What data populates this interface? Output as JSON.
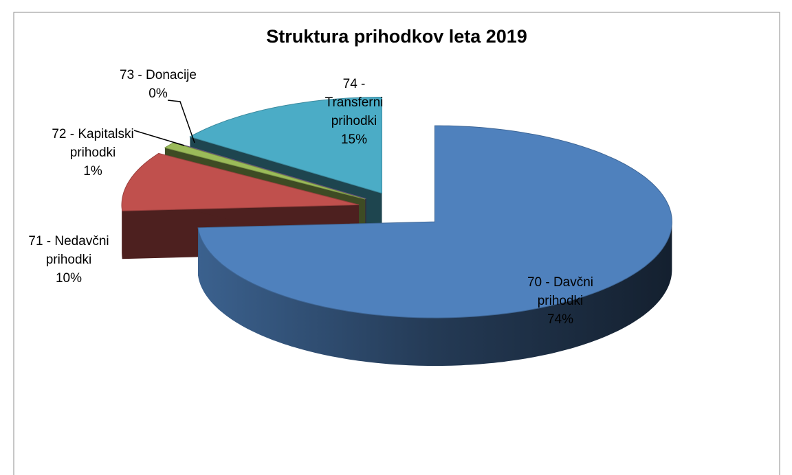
{
  "chart_data": {
    "type": "pie",
    "title": "Struktura prihodkov leta 2019",
    "categories": [
      "70 - Davčni prihodki",
      "71 - Nedavčni prihodki",
      "72 - Kapitalski prihodki",
      "73 - Donacije",
      "74 - Transferni prihodki"
    ],
    "values": [
      74,
      10,
      1,
      0,
      15
    ],
    "value_labels": [
      "74%",
      "10%",
      "1%",
      "0%",
      "15%"
    ],
    "colors": [
      "#4f81bd",
      "#c0504d",
      "#9bbb59",
      "#8064a2",
      "#4bacc6"
    ]
  }
}
